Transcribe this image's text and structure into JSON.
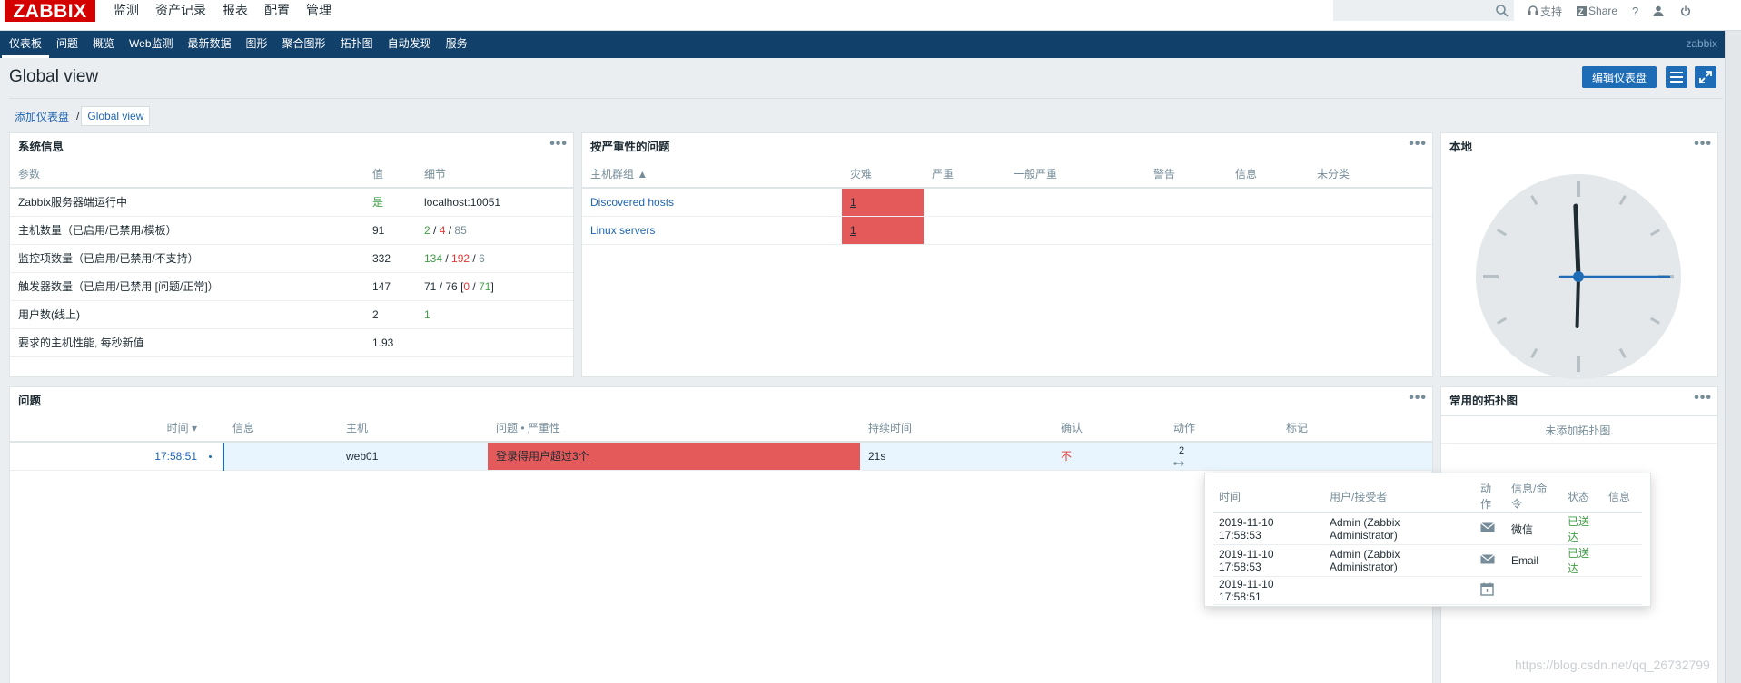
{
  "app": {
    "logo": "ZABBIX",
    "top_menu": [
      "监测",
      "资产记录",
      "报表",
      "配置",
      "管理"
    ],
    "search_placeholder": "",
    "top_links": {
      "support": "支持",
      "share": "Share",
      "help": "?"
    },
    "sub_menu": [
      "仪表板",
      "问题",
      "概览",
      "Web监测",
      "最新数据",
      "图形",
      "聚合图形",
      "拓扑图",
      "自动发现",
      "服务"
    ],
    "sub_brand": "zabbix"
  },
  "page": {
    "title": "Global view",
    "edit_button": "编辑仪表盘",
    "breadcrumb": [
      "添加仪表盘",
      "Global view"
    ]
  },
  "system_info": {
    "title": "系统信息",
    "headers": [
      "参数",
      "值",
      "细节"
    ],
    "rows": [
      {
        "param": "Zabbix服务器端运行中",
        "value": "是",
        "detail": [
          "localhost:10051"
        ]
      },
      {
        "param": "主机数量（已启用/已禁用/模板）",
        "value": "91",
        "detail": [
          "2",
          "4",
          "85"
        ]
      },
      {
        "param": "监控项数量（已启用/已禁用/不支持）",
        "value": "332",
        "detail": [
          "134",
          "192",
          "6"
        ]
      },
      {
        "param": "触发器数量（已启用/已禁用 [问题/正常]）",
        "value": "147",
        "detail": [
          "71",
          "76",
          "0",
          "71"
        ]
      },
      {
        "param": "用户数(线上)",
        "value": "2",
        "detail": [
          "1"
        ]
      },
      {
        "param": "要求的主机性能, 每秒新值",
        "value": "1.93",
        "detail": []
      }
    ]
  },
  "severity_problems": {
    "title": "按严重性的问题",
    "headers": [
      "主机群组 ▲",
      "灾难",
      "严重",
      "一般严重",
      "警告",
      "信息",
      "未分类"
    ],
    "rows": [
      {
        "group": "Discovered hosts",
        "disaster": "1"
      },
      {
        "group": "Linux servers",
        "disaster": "1"
      }
    ]
  },
  "clock": {
    "title": "本地",
    "hour": 12,
    "minute": 0,
    "second": 15
  },
  "problems": {
    "title": "问题",
    "headers": [
      "时间 ▾",
      "信息",
      "主机",
      "问题 • 严重性",
      "持续时间",
      "确认",
      "动作",
      "标记"
    ],
    "rows": [
      {
        "time": "17:58:51",
        "host": "web01",
        "problem": "登录得用户超过3个",
        "duration": "21s",
        "ack": "不",
        "actions": "2"
      }
    ]
  },
  "maps": {
    "title": "常用的拓扑图",
    "empty": "未添加拓扑图."
  },
  "popup": {
    "headers": [
      "时间",
      "用户/接受者",
      "动作",
      "信息/命令",
      "状态",
      "信息"
    ],
    "rows": [
      {
        "time": "2019-11-10 17:58:53",
        "user": "Admin (Zabbix Administrator)",
        "action": "mail-icon",
        "message": "微信",
        "status": "已送达"
      },
      {
        "time": "2019-11-10 17:58:53",
        "user": "Admin (Zabbix Administrator)",
        "action": "mail-icon",
        "message": "Email",
        "status": "已送达"
      },
      {
        "time": "2019-11-10 17:58:51",
        "user": "",
        "action": "calendar-icon",
        "message": "",
        "status": ""
      }
    ]
  },
  "watermark": "https://blog.csdn.net/qq_26732799",
  "colors": {
    "disaster": "#e45959",
    "nav": "#11406a",
    "brand": "#d40000",
    "accent": "#1e6cb5",
    "ok": "#429e47"
  }
}
